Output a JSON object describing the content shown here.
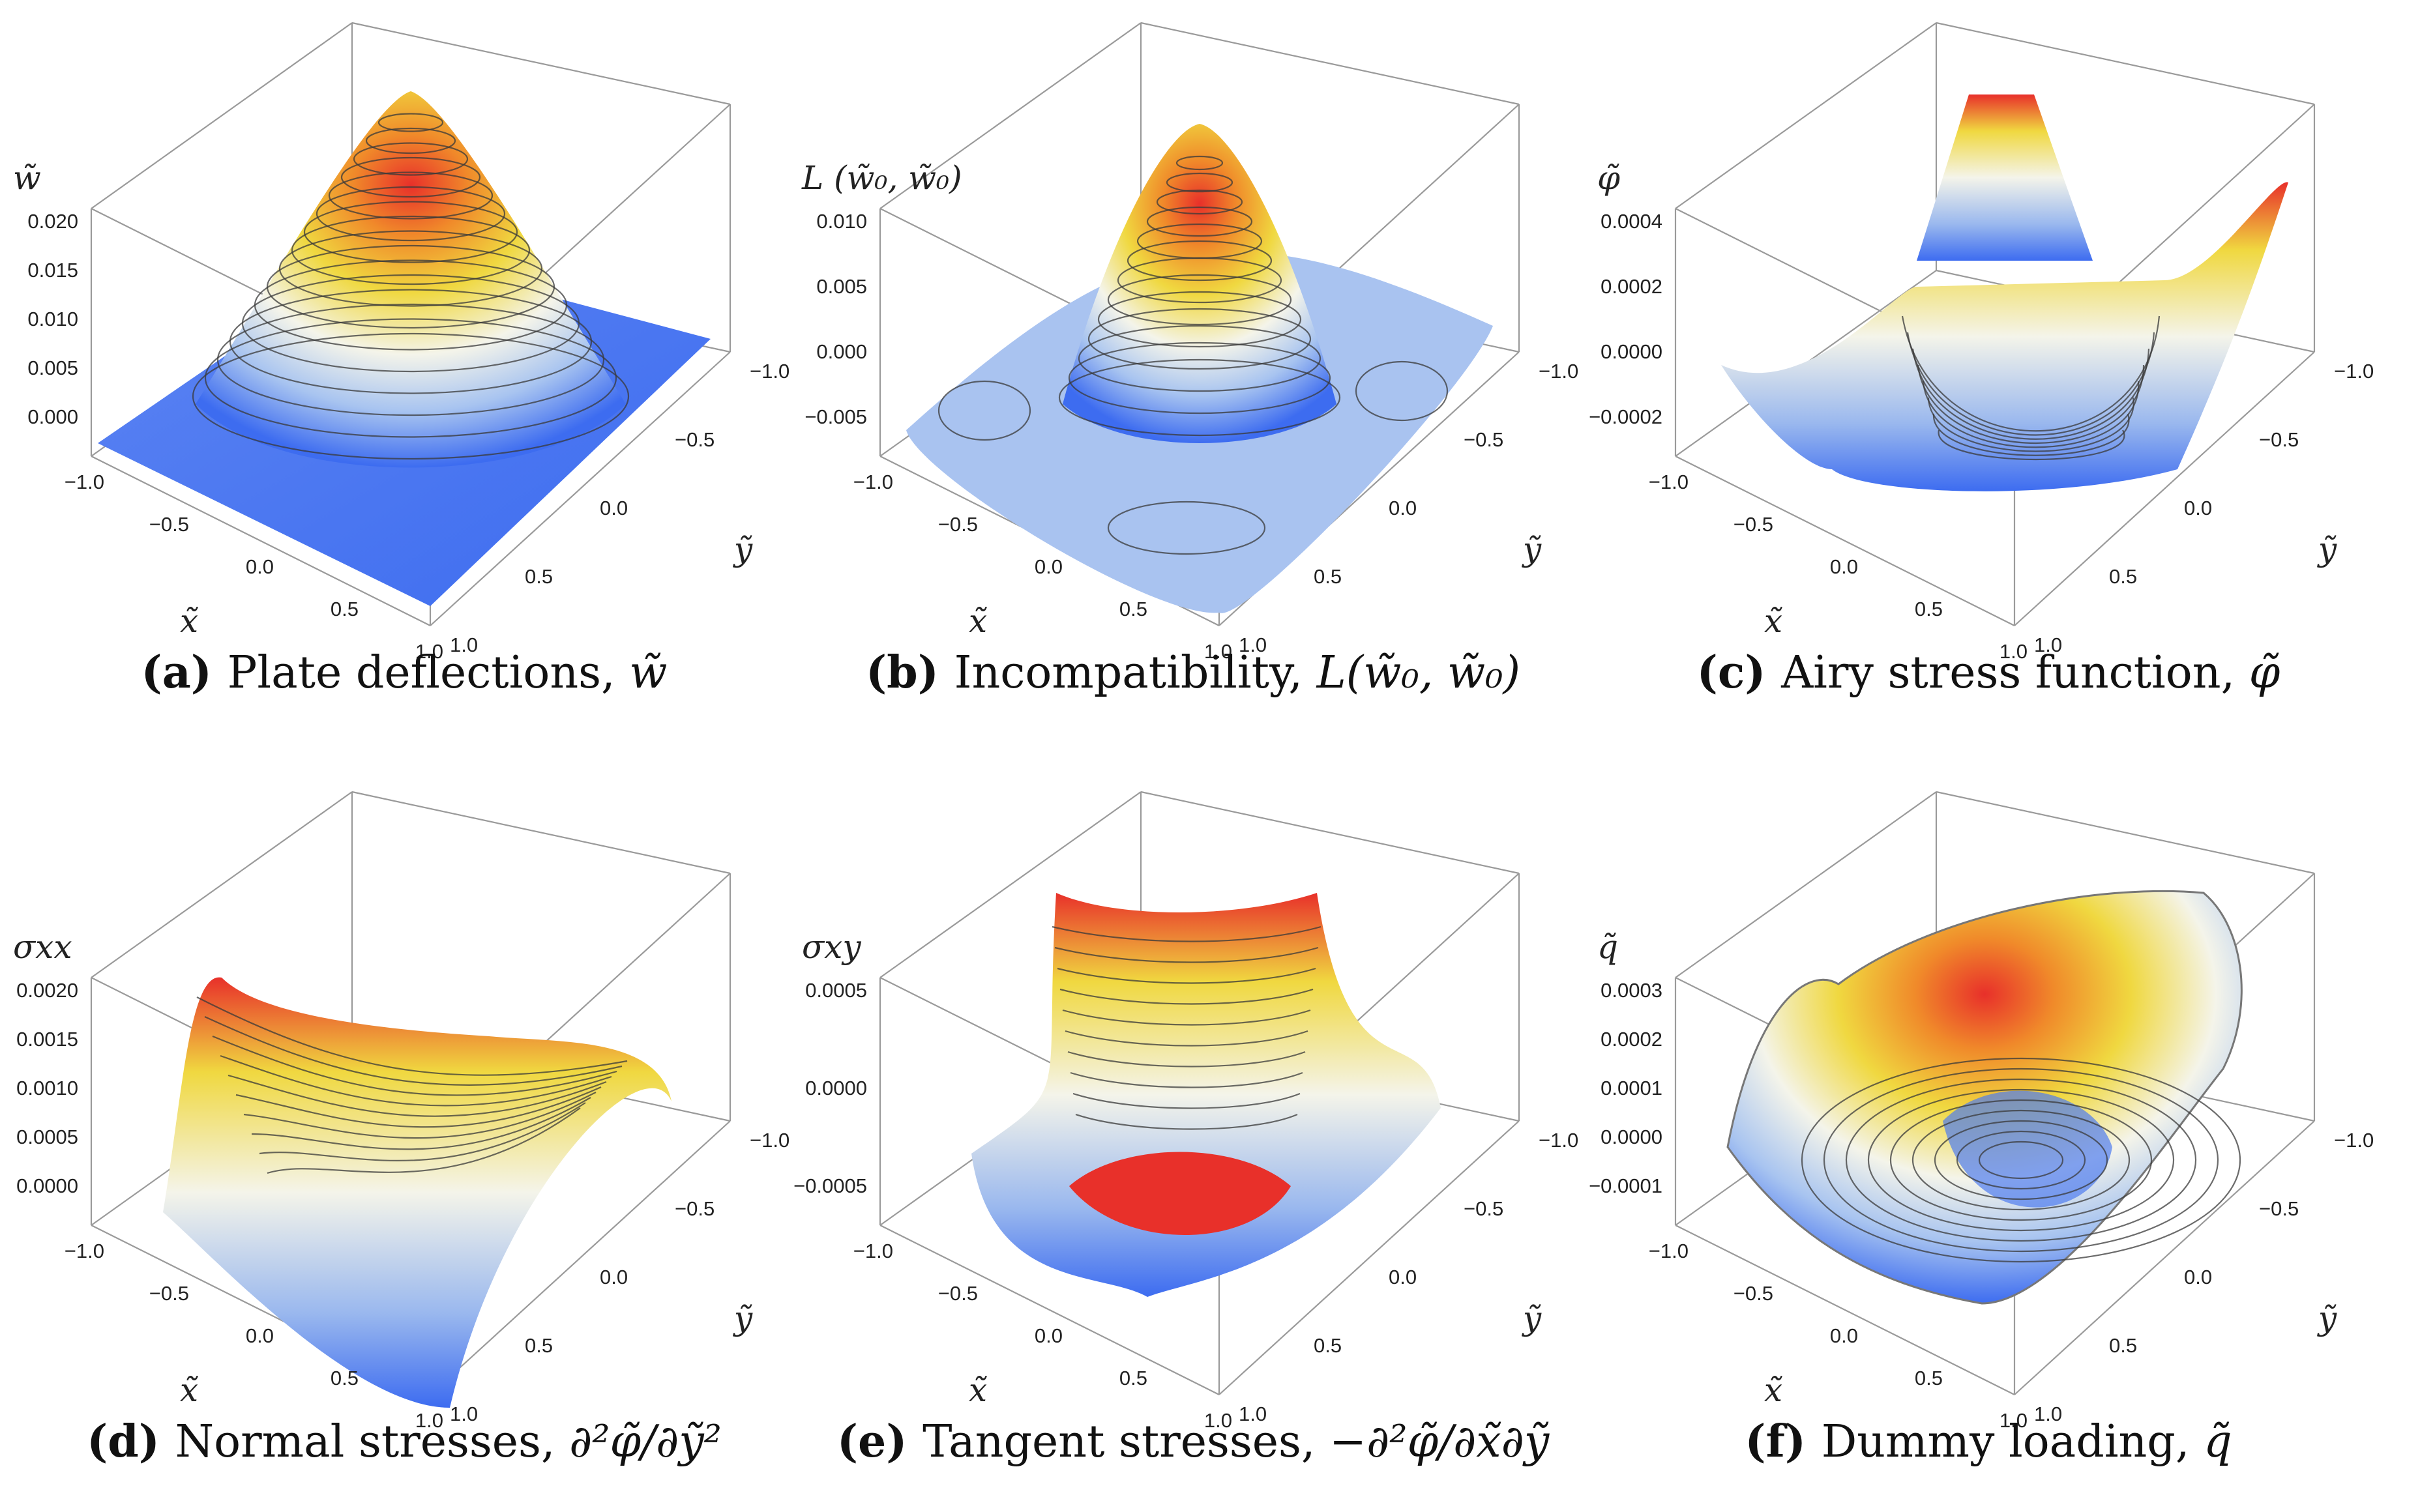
{
  "chart_data": [
    {
      "type": "surface3d",
      "panel": "a",
      "caption": {
        "letter": "(a)",
        "text": "Plate deflections, ",
        "symbol": "w̃"
      },
      "zlabel": "w̃",
      "xlabel": "x̃",
      "ylabel": "ỹ",
      "xticks": [
        "−1.0",
        "−0.5",
        "0.0",
        "0.5",
        "1.0"
      ],
      "yticks": [
        "−1.0",
        "−0.5",
        "0.0",
        "0.5",
        "1.0"
      ],
      "zticks": [
        "0.020",
        "0.015",
        "0.010",
        "0.005",
        "0.000"
      ],
      "xlim": [
        -1,
        1
      ],
      "ylim": [
        -1,
        1
      ],
      "zlim": [
        0,
        0.02
      ],
      "shape": "central-peak"
    },
    {
      "type": "surface3d",
      "panel": "b",
      "caption": {
        "letter": "(b)",
        "text": "Incompatibility, ",
        "symbol": "L(w̃₀, w̃₀)"
      },
      "zlabel": "L (w̃₀, w̃₀)",
      "xlabel": "x̃",
      "ylabel": "ỹ",
      "xticks": [
        "−1.0",
        "−0.5",
        "0.0",
        "0.5",
        "1.0"
      ],
      "yticks": [
        "−1.0",
        "−0.5",
        "0.0",
        "0.5",
        "1.0"
      ],
      "zticks": [
        "0.010",
        "0.005",
        "0.000",
        "−0.005"
      ],
      "xlim": [
        -1,
        1
      ],
      "ylim": [
        -1,
        1
      ],
      "zlim": [
        -0.005,
        0.01
      ],
      "shape": "peak-with-ring"
    },
    {
      "type": "surface3d",
      "panel": "c",
      "caption": {
        "letter": "(c)",
        "text": "Airy stress function, ",
        "symbol": "φ̃"
      },
      "zlabel": "φ̃",
      "xlabel": "x̃",
      "ylabel": "ỹ",
      "xticks": [
        "−1.0",
        "−0.5",
        "0.0",
        "0.5",
        "1.0"
      ],
      "yticks": [
        "−1.0",
        "−0.5",
        "0.0",
        "0.5",
        "1.0"
      ],
      "zticks": [
        "0.0004",
        "0.0002",
        "0.0000",
        "−0.0002"
      ],
      "xlim": [
        -1,
        1
      ],
      "ylim": [
        -1,
        1
      ],
      "zlim": [
        -0.0002,
        0.0005
      ],
      "shape": "saddle-corners"
    },
    {
      "type": "surface3d",
      "panel": "d",
      "caption": {
        "letter": "(d)",
        "text": "Normal stresses, ",
        "symbol": "∂²φ̃/∂ỹ²"
      },
      "zlabel": "σxx",
      "xlabel": "x̃",
      "ylabel": "ỹ",
      "xticks": [
        "−1.0",
        "−0.5",
        "0.0",
        "0.5",
        "1.0"
      ],
      "yticks": [
        "−1.0",
        "−0.5",
        "0.0",
        "0.5",
        "1.0"
      ],
      "zticks": [
        "0.0020",
        "0.0015",
        "0.0010",
        "0.0005",
        "0.0000"
      ],
      "xlim": [
        -1,
        1
      ],
      "ylim": [
        -1,
        1
      ],
      "zlim": [
        0,
        0.002
      ],
      "shape": "ridge"
    },
    {
      "type": "surface3d",
      "panel": "e",
      "caption": {
        "letter": "(e)",
        "text": "Tangent stresses, ",
        "symbol": "−∂²φ̃/∂x̃∂ỹ"
      },
      "zlabel": "σxy",
      "xlabel": "x̃",
      "ylabel": "ỹ",
      "xticks": [
        "−1.0",
        "−0.5",
        "0.0",
        "0.5",
        "1.0"
      ],
      "yticks": [
        "−1.0",
        "−0.5",
        "0.0",
        "0.5",
        "1.0"
      ],
      "zticks": [
        "0.0005",
        "0.0000",
        "−0.0005"
      ],
      "xlim": [
        -1,
        1
      ],
      "ylim": [
        -1,
        1
      ],
      "zlim": [
        -0.0008,
        0.0008
      ],
      "shape": "quadrupole"
    },
    {
      "type": "surface3d",
      "panel": "f",
      "caption": {
        "letter": "(f)",
        "text": "Dummy loading, ",
        "symbol": "q̃"
      },
      "zlabel": "q̃",
      "xlabel": "x̃",
      "ylabel": "ỹ",
      "xticks": [
        "−1.0",
        "−0.5",
        "0.0",
        "0.5",
        "1.0"
      ],
      "yticks": [
        "−1.0",
        "−0.5",
        "0.0",
        "0.5",
        "1.0"
      ],
      "zticks": [
        "0.0003",
        "0.0002",
        "0.0001",
        "0.0000",
        "−0.0001"
      ],
      "xlim": [
        -1,
        1
      ],
      "ylim": [
        -1,
        1
      ],
      "zlim": [
        -0.00015,
        0.00035
      ],
      "shape": "bowl-jagged"
    }
  ],
  "colors": {
    "surface_low": "#3d6cf0",
    "surface_mid": "#f4f4f0",
    "surface_high_mid": "#f0d840",
    "surface_high": "#e8302a",
    "contour": "#3a3a3a",
    "box": "#9a9a9a"
  }
}
